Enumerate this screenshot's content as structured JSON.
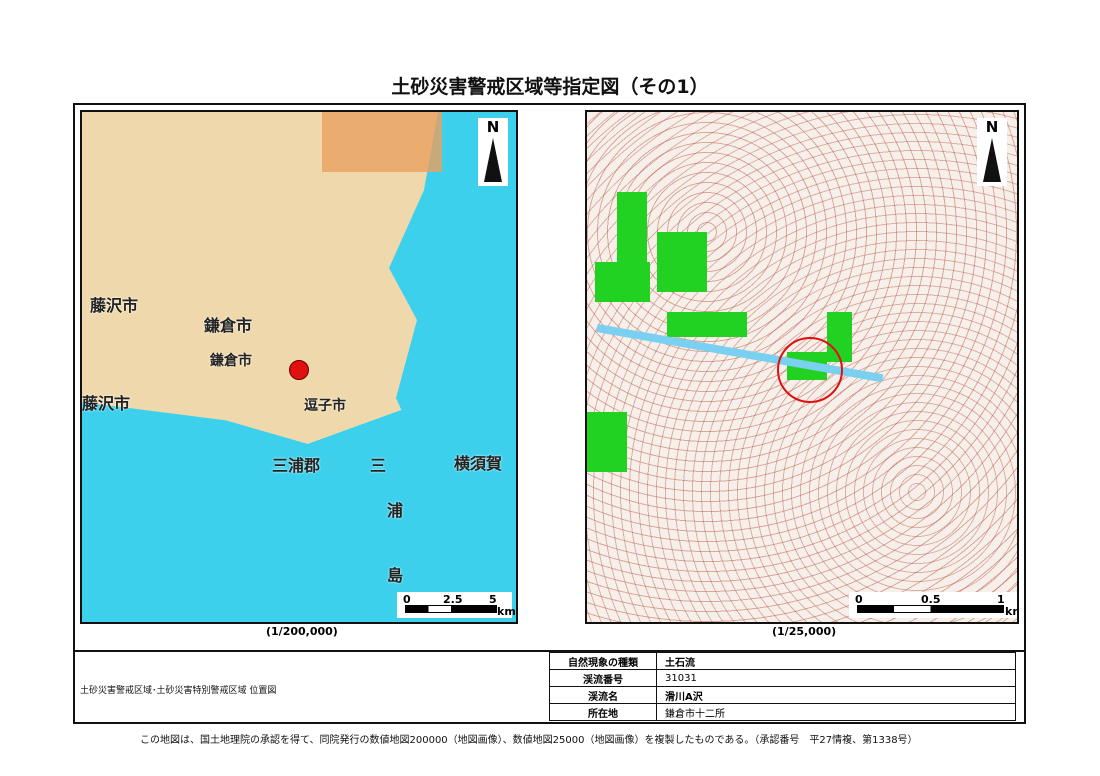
{
  "title": "土砂災害警戒区域等指定図（その1）",
  "left_map": {
    "labels": [
      "藤沢市",
      "鎌倉市",
      "鎌倉市",
      "藤沢市",
      "逗子市",
      "三浦郡",
      "三",
      "横須賀",
      "浦",
      "島"
    ],
    "north": "N",
    "scale_ticks": [
      "0",
      "2.5",
      "5"
    ],
    "scale_unit": "km",
    "scale": "(1/200,000)",
    "marker_color": "#e01010"
  },
  "right_map": {
    "north": "N",
    "scale_ticks": [
      "0",
      "0.5",
      "1"
    ],
    "scale_unit": "km",
    "scale": "(1/25,000)",
    "marker_color": "#e01010"
  },
  "caption": "土砂災害警戒区域･土砂災害特別警戒区域 位置図",
  "info": [
    {
      "key": "自然現象の種類",
      "value": "土石流"
    },
    {
      "key": "渓流番号",
      "value": "31031"
    },
    {
      "key": "渓流名",
      "value": "滑川A沢"
    },
    {
      "key": "所在地",
      "value": "鎌倉市十二所"
    }
  ],
  "footer": "この地図は、国土地理院の承認を得て、同院発行の数値地図200000（地図画像）、数値地図25000（地図画像）を複製したものである。（承認番号　平27情複、第1338号）"
}
